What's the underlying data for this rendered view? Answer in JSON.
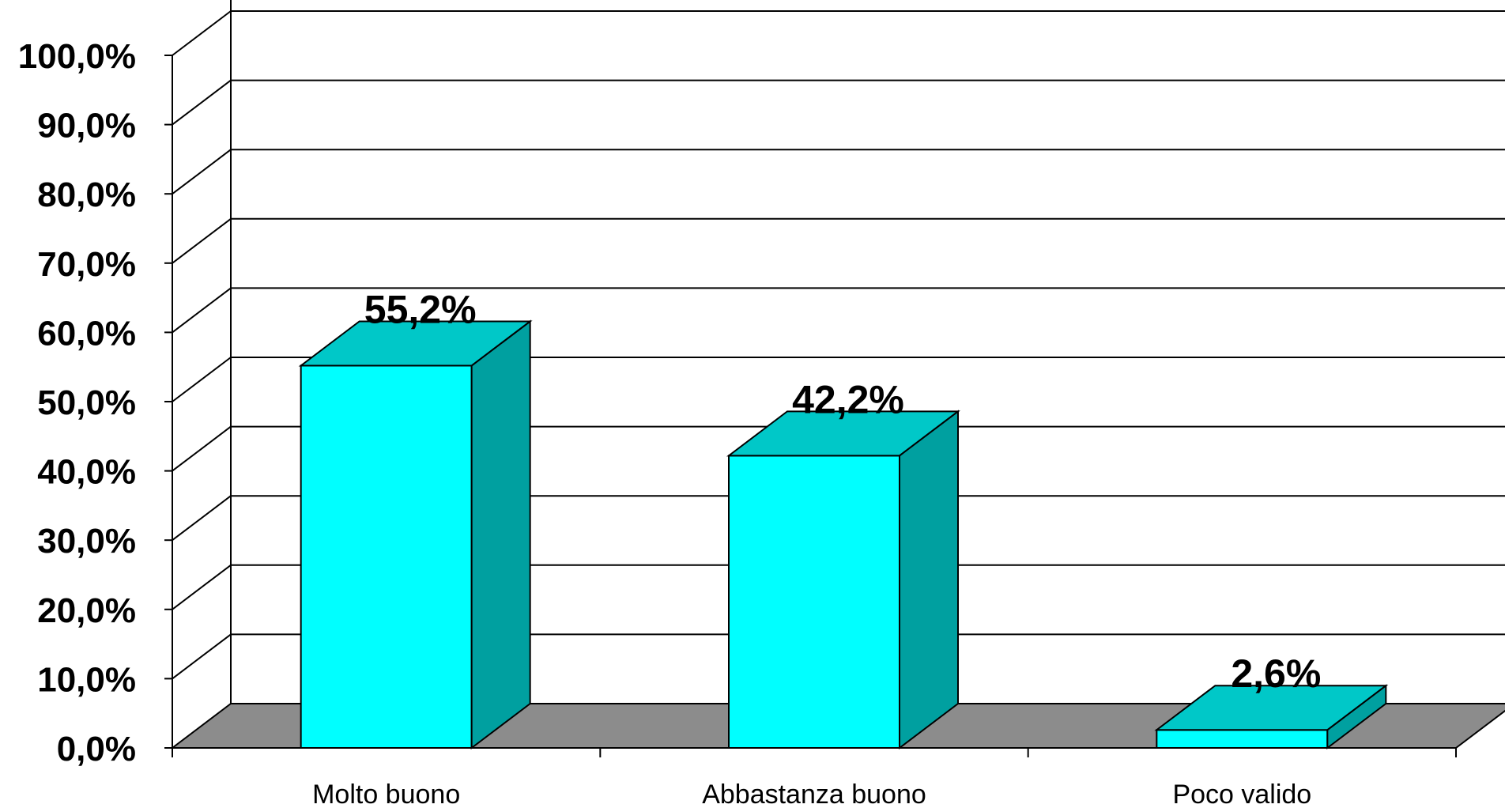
{
  "chart_data": {
    "type": "bar",
    "categories": [
      "Molto buono",
      "Abbastanza buono",
      "Poco valido"
    ],
    "values": [
      55.2,
      42.2,
      2.6
    ],
    "data_labels": [
      "55,2%",
      "42,2%",
      "2,6%"
    ],
    "y_ticks": [
      "0,0%",
      "10,0%",
      "20,0%",
      "30,0%",
      "40,0%",
      "50,0%",
      "60,0%",
      "70,0%",
      "80,0%",
      "90,0%",
      "100,0%"
    ],
    "ylim": [
      0,
      100
    ],
    "grid": true,
    "legend": "none",
    "title": "",
    "xlabel": "",
    "ylabel": "",
    "colors": {
      "bar_front": "#00FFFF",
      "bar_top": "#00C8C8",
      "bar_side": "#00A0A0",
      "floor": "#8C8C8C",
      "grid": "#000000"
    }
  }
}
